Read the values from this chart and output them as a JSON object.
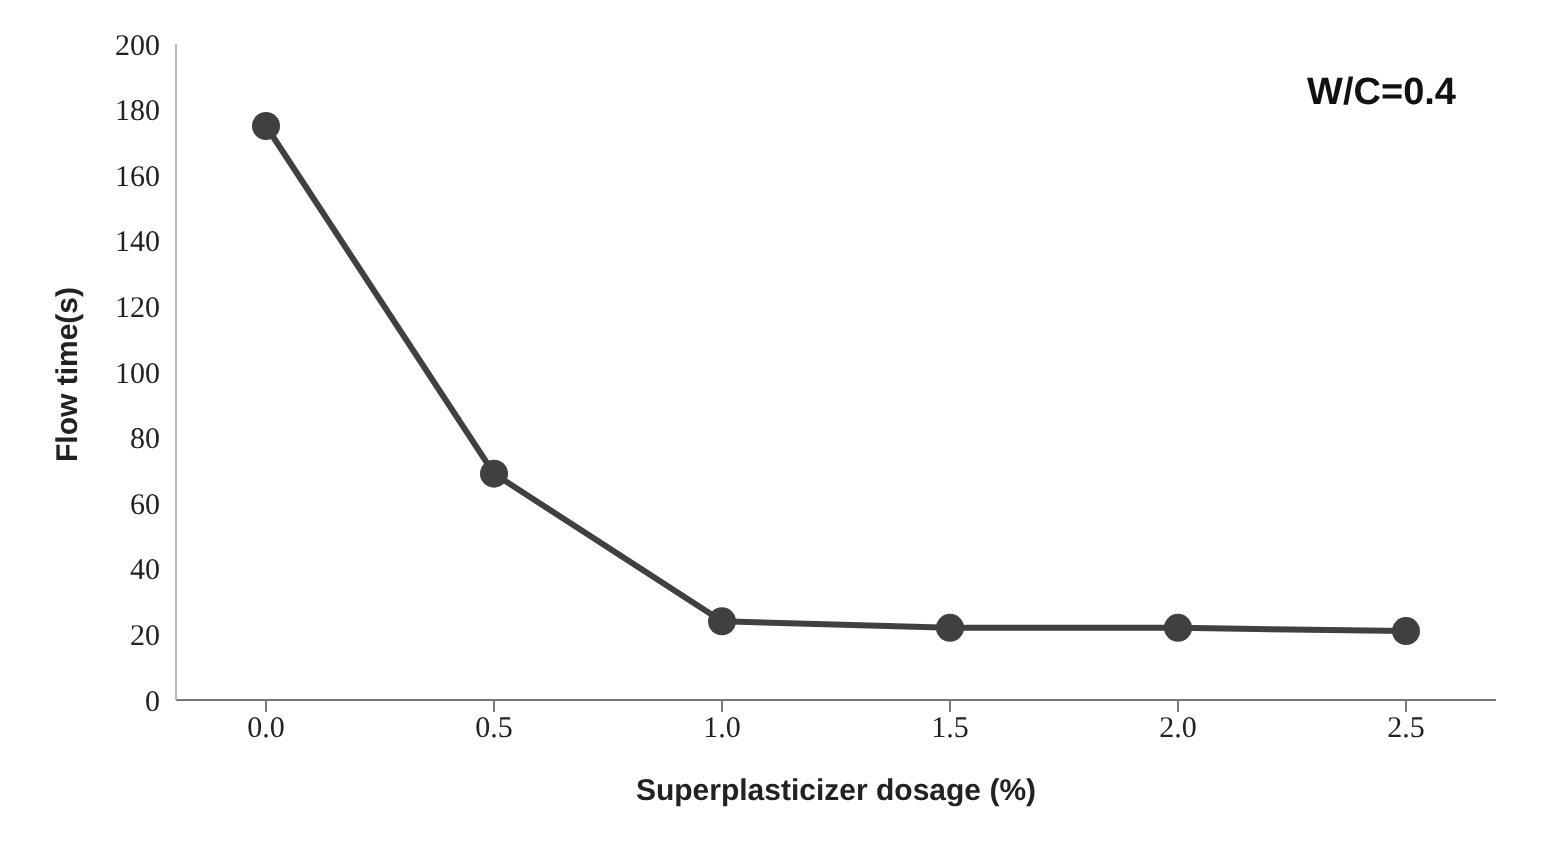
{
  "chart_data": {
    "type": "line",
    "xlabel": "Superplasticizer dosage (%)",
    "ylabel": "Flow time(s)",
    "categories": [
      "0.0",
      "0.5",
      "1.0",
      "1.5",
      "2.0",
      "2.5"
    ],
    "series": [
      {
        "color": "#404040",
        "values": [
          175,
          69,
          24,
          22,
          22,
          21
        ]
      }
    ],
    "ylim": [
      0,
      200
    ],
    "yticks": [
      0,
      20,
      40,
      60,
      80,
      100,
      120,
      140,
      160,
      180,
      200
    ],
    "grid": false,
    "legend": false,
    "marker": "circle",
    "line_style": "solid",
    "annotations": [
      "W/C=0.4"
    ]
  }
}
